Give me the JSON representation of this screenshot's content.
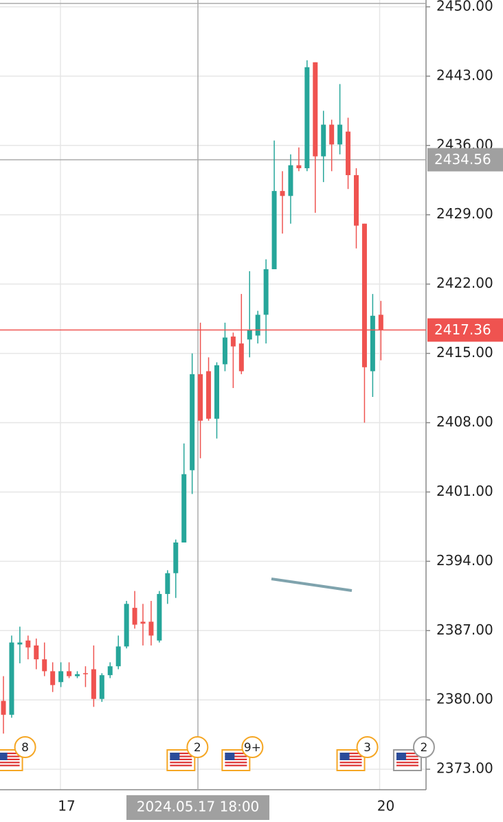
{
  "chart_data": {
    "type": "candlestick",
    "x": [
      0,
      1,
      2,
      3,
      4,
      5,
      6,
      7,
      8,
      9,
      10,
      11,
      12,
      13,
      14,
      15,
      16,
      17,
      18,
      19,
      20,
      21,
      22,
      23,
      24,
      25,
      26,
      27,
      28,
      29,
      30,
      31,
      32,
      33,
      34,
      35,
      36,
      37,
      38,
      39,
      40,
      41,
      42,
      43,
      44,
      45,
      46
    ],
    "open": [
      2379.9,
      2378.5,
      2385.6,
      2386.0,
      2385.5,
      2384.1,
      2382.9,
      2381.8,
      2382.9,
      2382.4,
      2382.7,
      2383.1,
      2380.1,
      2382.5,
      2383.4,
      2385.4,
      2389.3,
      2387.9,
      2387.9,
      2386.0,
      2390.7,
      2392.8,
      2395.9,
      2403.2,
      2412.9,
      2413.2,
      2408.4,
      2413.9,
      2416.7,
      2416.0,
      2416.4,
      2416.8,
      2418.9,
      2423.5,
      2431.4,
      2430.9,
      2434.0,
      2433.7,
      2444.4,
      2434.9,
      2438.1,
      2436.1,
      2437.4,
      2433.0,
      2428.1,
      2413.2,
      2418.9
    ],
    "high": [
      2382.4,
      2386.5,
      2387.4,
      2386.5,
      2386.2,
      2385.8,
      2383.8,
      2383.8,
      2383.8,
      2382.9,
      2383.4,
      2385.5,
      2382.7,
      2383.8,
      2386.5,
      2390.0,
      2391.0,
      2389.7,
      2390.0,
      2391.0,
      2393.1,
      2396.2,
      2405.9,
      2415.0,
      2418.1,
      2414.6,
      2414.1,
      2418.1,
      2417.1,
      2421.0,
      2423.3,
      2419.3,
      2424.5,
      2436.5,
      2433.4,
      2435.1,
      2435.8,
      2444.6,
      2444.4,
      2439.5,
      2438.6,
      2442.2,
      2438.8,
      2433.7,
      2428.1,
      2421.0,
      2420.3
    ],
    "low": [
      2376.6,
      2378.2,
      2383.7,
      2384.1,
      2383.1,
      2382.4,
      2380.8,
      2381.3,
      2382.2,
      2382.2,
      2381.3,
      2379.3,
      2379.8,
      2382.2,
      2383.1,
      2385.2,
      2387.2,
      2385.5,
      2385.5,
      2385.8,
      2389.7,
      2390.3,
      2395.9,
      2400.8,
      2404.4,
      2408.2,
      2406.4,
      2413.2,
      2411.5,
      2412.9,
      2414.6,
      2416.0,
      2416.0,
      2423.5,
      2427.1,
      2428.1,
      2433.4,
      2433.4,
      2429.2,
      2432.3,
      2433.4,
      2435.1,
      2431.6,
      2425.6,
      2408.0,
      2410.6,
      2414.3
    ],
    "close": [
      2378.5,
      2385.8,
      2385.8,
      2385.3,
      2384.1,
      2382.9,
      2381.5,
      2382.9,
      2382.4,
      2382.6,
      2382.6,
      2380.1,
      2382.5,
      2383.4,
      2385.4,
      2389.7,
      2387.6,
      2387.7,
      2386.5,
      2390.7,
      2392.8,
      2395.9,
      2402.8,
      2412.9,
      2408.2,
      2408.4,
      2413.8,
      2416.6,
      2415.7,
      2413.2,
      2417.4,
      2418.9,
      2423.5,
      2431.4,
      2430.9,
      2434.0,
      2433.7,
      2443.9,
      2434.9,
      2438.1,
      2436.1,
      2438.1,
      2433.0,
      2427.9,
      2413.6,
      2418.8,
      2417.36
    ],
    "up_color": "#26a69a",
    "down_color": "#ef5350",
    "xlim": [
      -0.42,
      51.5
    ],
    "xticks": [
      {
        "value": 7.7,
        "label": "17"
      },
      {
        "value": 46.6,
        "label": "20"
      }
    ],
    "ylim": [
      2370.93,
      2450.69
    ],
    "yticks": [
      {
        "value": 2450,
        "label": "2450.00"
      },
      {
        "value": 2443,
        "label": "2443.00"
      },
      {
        "value": 2436,
        "label": "2436.00"
      },
      {
        "value": 2429,
        "label": "2429.00"
      },
      {
        "value": 2422,
        "label": "2422.00"
      },
      {
        "value": 2415,
        "label": "2415.00"
      },
      {
        "value": 2408,
        "label": "2408.00"
      },
      {
        "value": 2401,
        "label": "2401.00"
      },
      {
        "value": 2394,
        "label": "2394.00"
      },
      {
        "value": 2387,
        "label": "2387.00"
      },
      {
        "value": 2380,
        "label": "2380.00"
      },
      {
        "value": 2373,
        "label": "2373.00"
      }
    ],
    "grid": true,
    "current_price": 2417.36,
    "crosshair": {
      "price": 2434.56,
      "x": 23.7,
      "time": "2024.05.17 18:00"
    },
    "events": [
      {
        "x": 0.8,
        "label": "8"
      },
      {
        "x": 21.8,
        "label": "2"
      },
      {
        "x": 28.5,
        "label": "9+"
      },
      {
        "x": 42.5,
        "label": "3"
      },
      {
        "x": 49.4,
        "label": "2"
      }
    ]
  }
}
